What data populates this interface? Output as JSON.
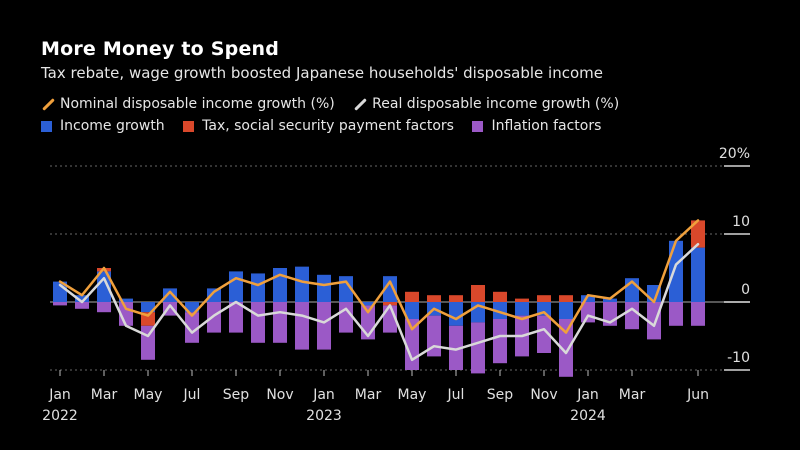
{
  "title": "More Money to Spend",
  "subtitle": "Tax rebate, wage growth boosted Japanese households' disposable income",
  "legend": {
    "nominal": "Nominal disposable income growth (%)",
    "real": "Real disposable income growth (%)",
    "income": "Income growth",
    "tax": "Tax, social security payment factors",
    "inflation": "Inflation factors"
  },
  "colors": {
    "background": "#000000",
    "nominal": "#f0a03c",
    "real": "#d9d9d9",
    "income": "#2b5fd6",
    "tax": "#d9482b",
    "inflation": "#9b59c6"
  },
  "chart_data": {
    "type": "bar",
    "title": "More Money to Spend",
    "subtitle": "Tax rebate, wage growth boosted Japanese households' disposable income",
    "ylim": [
      -12,
      20
    ],
    "yticks": [
      -10,
      0,
      10,
      20
    ],
    "ytick_labels": [
      "-10",
      "0",
      "10",
      "20%"
    ],
    "categories": [
      "2022-01",
      "2022-02",
      "2022-03",
      "2022-04",
      "2022-05",
      "2022-06",
      "2022-07",
      "2022-08",
      "2022-09",
      "2022-10",
      "2022-11",
      "2022-12",
      "2023-01",
      "2023-02",
      "2023-03",
      "2023-04",
      "2023-05",
      "2023-06",
      "2023-07",
      "2023-08",
      "2023-09",
      "2023-10",
      "2023-11",
      "2023-12",
      "2024-01",
      "2024-02",
      "2024-03",
      "2024-04",
      "2024-05",
      "2024-06"
    ],
    "x_tick_labels": [
      {
        "index": 0,
        "month": "Jan",
        "year": "2022"
      },
      {
        "index": 2,
        "month": "Mar",
        "year": ""
      },
      {
        "index": 4,
        "month": "May",
        "year": ""
      },
      {
        "index": 6,
        "month": "Jul",
        "year": ""
      },
      {
        "index": 8,
        "month": "Sep",
        "year": ""
      },
      {
        "index": 10,
        "month": "Nov",
        "year": ""
      },
      {
        "index": 12,
        "month": "Jan",
        "year": "2023"
      },
      {
        "index": 14,
        "month": "Mar",
        "year": ""
      },
      {
        "index": 16,
        "month": "May",
        "year": ""
      },
      {
        "index": 18,
        "month": "Jul",
        "year": ""
      },
      {
        "index": 20,
        "month": "Sep",
        "year": ""
      },
      {
        "index": 22,
        "month": "Nov",
        "year": ""
      },
      {
        "index": 24,
        "month": "Jan",
        "year": "2024"
      },
      {
        "index": 26,
        "month": "Mar",
        "year": ""
      },
      {
        "index": 29,
        "month": "Jun",
        "year": ""
      }
    ],
    "bar_series": [
      {
        "name": "Income growth",
        "key": "income",
        "values": [
          3.0,
          1.0,
          4.5,
          0.5,
          -1.5,
          2.0,
          -1.5,
          2.0,
          4.5,
          4.2,
          5.0,
          5.2,
          4.0,
          3.8,
          -0.5,
          3.8,
          -2.5,
          -2.0,
          -3.5,
          -3.0,
          -2.5,
          -2.0,
          -2.0,
          -2.5,
          1.0,
          0.5,
          3.5,
          2.5,
          9.0,
          8.0
        ]
      },
      {
        "name": "Tax, social security payment factors",
        "key": "tax",
        "values": [
          0,
          0,
          0.5,
          0,
          -2.0,
          0,
          0,
          0,
          0,
          0,
          0,
          0,
          0,
          0,
          0,
          -0.5,
          1.5,
          1.0,
          1.0,
          2.5,
          1.5,
          0.5,
          1.0,
          1.0,
          0,
          0,
          0,
          0,
          0,
          4.0
        ]
      },
      {
        "name": "Inflation factors",
        "key": "inflation",
        "values": [
          -0.5,
          -1.0,
          -1.5,
          -3.5,
          -5.0,
          -2.0,
          -4.5,
          -4.5,
          -4.5,
          -6.0,
          -6.0,
          -7.0,
          -7.0,
          -4.5,
          -5.0,
          -4.0,
          -7.5,
          -6.0,
          -6.5,
          -7.5,
          -6.5,
          -6.0,
          -5.5,
          -8.5,
          -3.0,
          -3.5,
          -4.0,
          -5.5,
          -3.5,
          -3.5
        ]
      }
    ],
    "line_series": [
      {
        "name": "Nominal disposable income growth (%)",
        "key": "nominal",
        "values": [
          3.0,
          1.0,
          5.0,
          -1.0,
          -2.0,
          1.5,
          -2.0,
          1.5,
          3.5,
          2.5,
          4.0,
          3.0,
          2.5,
          3.0,
          -1.5,
          3.0,
          -4.0,
          -1.0,
          -2.5,
          -0.5,
          -1.5,
          -2.5,
          -1.5,
          -4.5,
          1.0,
          0.5,
          3.0,
          0.0,
          9.0,
          12.0
        ]
      },
      {
        "name": "Real disposable income growth (%)",
        "key": "real",
        "values": [
          2.5,
          0.0,
          3.5,
          -3.5,
          -5.0,
          -0.5,
          -4.5,
          -2.0,
          0.0,
          -2.0,
          -1.5,
          -2.0,
          -3.0,
          -1.0,
          -5.0,
          -0.5,
          -8.5,
          -6.5,
          -7.0,
          -6.0,
          -5.0,
          -5.0,
          -4.0,
          -7.5,
          -2.0,
          -3.0,
          -1.0,
          -3.5,
          5.5,
          8.5
        ]
      }
    ]
  }
}
